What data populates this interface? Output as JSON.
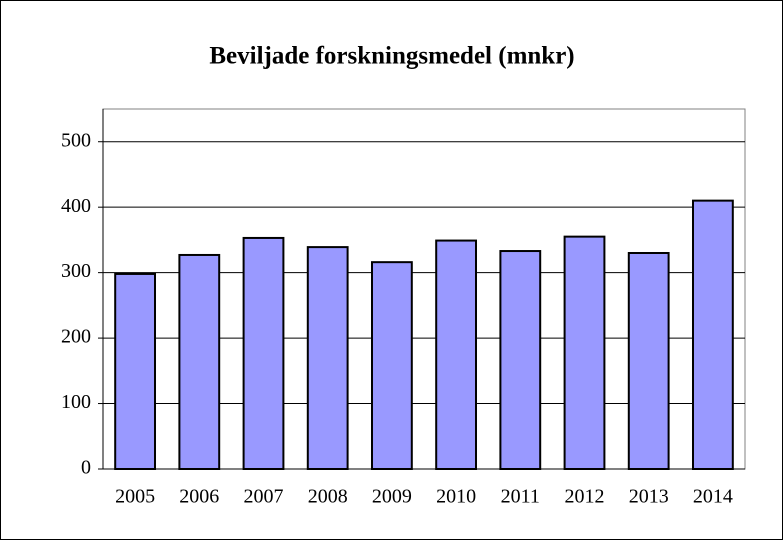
{
  "chart_data": {
    "type": "bar",
    "title": "Beviljade forskningsmedel (mnkr)",
    "categories": [
      "2005",
      "2006",
      "2007",
      "2008",
      "2009",
      "2010",
      "2011",
      "2012",
      "2013",
      "2014"
    ],
    "values": [
      298,
      327,
      353,
      339,
      316,
      349,
      333,
      355,
      330,
      410
    ],
    "color": "#9999ff",
    "ylim": [
      0,
      550
    ],
    "yticks": [
      0,
      100,
      200,
      300,
      400,
      500
    ],
    "grid": true
  }
}
